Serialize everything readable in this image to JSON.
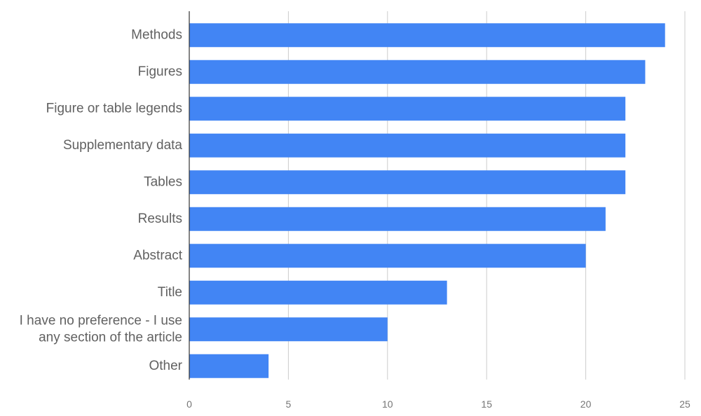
{
  "chart_data": {
    "type": "bar",
    "orientation": "horizontal",
    "categories": [
      [
        "Methods"
      ],
      [
        "Figures"
      ],
      [
        "Figure or table legends"
      ],
      [
        "Supplementary data"
      ],
      [
        "Tables"
      ],
      [
        "Results"
      ],
      [
        "Abstract"
      ],
      [
        "Title"
      ],
      [
        "I have no preference - I use",
        "any section of the article"
      ],
      [
        "Other"
      ]
    ],
    "values": [
      24,
      23,
      22,
      22,
      22,
      21,
      20,
      13,
      10,
      4
    ],
    "title": "",
    "xlabel": "",
    "ylabel": "",
    "xlim": [
      0,
      25
    ],
    "x_ticks": [
      0,
      5,
      10,
      15,
      20,
      25
    ],
    "grid": "vertical",
    "legend": "none",
    "bar_color": "#4285F4"
  }
}
